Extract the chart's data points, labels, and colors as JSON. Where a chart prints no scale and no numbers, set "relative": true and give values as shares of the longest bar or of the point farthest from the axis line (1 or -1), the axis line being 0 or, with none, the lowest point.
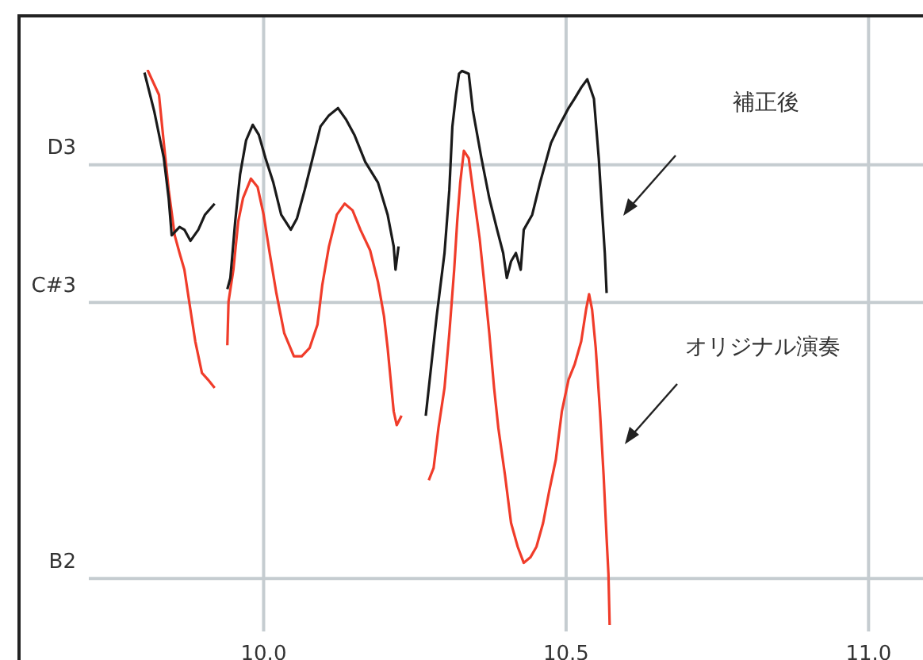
{
  "chart_data": {
    "type": "line",
    "relative": true,
    "xlim": [
      9.711,
      11.09
    ],
    "xticks": [
      {
        "value": 10,
        "label": "10.0"
      },
      {
        "value": 10.5,
        "label": "10.5"
      },
      {
        "value": 11,
        "label": "11.0"
      }
    ],
    "ref_lines": [
      {
        "axis": "y",
        "value": 0.829,
        "label": "D3"
      },
      {
        "axis": "y",
        "value": 0.581,
        "label": "C#3"
      },
      {
        "axis": "y",
        "value": 0.084,
        "label": "B2"
      }
    ],
    "grid": "x",
    "legend": false,
    "marker": "none",
    "line_style": "solid",
    "series": [
      {
        "name": "補正後",
        "color": "#1a1a1a",
        "x": [
          9.803,
          9.819,
          9.835,
          9.843,
          9.848,
          9.861,
          9.869,
          9.879,
          9.892,
          9.903,
          9.919,
          9.93,
          9.94,
          9.945,
          9.953,
          9.961,
          9.971,
          9.982,
          9.992,
          10.003,
          10.016,
          10.029,
          10.045,
          10.055,
          10.068,
          10.081,
          10.094,
          10.108,
          10.123,
          10.136,
          10.15,
          10.168,
          10.189,
          10.205,
          10.215,
          10.218,
          10.223,
          10.24,
          10.268,
          10.286,
          10.299,
          10.307,
          10.312,
          10.318,
          10.323,
          10.328,
          10.339,
          10.346,
          10.36,
          10.373,
          10.386,
          10.396,
          10.402,
          10.409,
          10.417,
          10.425,
          10.43,
          10.444,
          10.457,
          10.475,
          10.488,
          10.504,
          10.514,
          10.525,
          10.535,
          10.546,
          10.554,
          10.559,
          10.564,
          10.567
        ],
        "values": [
          0.995,
          0.926,
          0.841,
          0.769,
          0.702,
          0.717,
          0.712,
          0.692,
          0.712,
          0.739,
          0.759,
          null,
          0.605,
          0.625,
          0.727,
          0.811,
          0.873,
          0.901,
          0.883,
          0.841,
          0.797,
          0.739,
          0.712,
          0.732,
          0.784,
          0.841,
          0.898,
          0.918,
          0.931,
          0.911,
          0.883,
          0.834,
          0.797,
          0.739,
          0.682,
          0.64,
          0.682,
          null,
          0.377,
          0.556,
          0.67,
          0.784,
          0.898,
          0.955,
          0.993,
          0.998,
          0.993,
          0.926,
          0.841,
          0.769,
          0.712,
          0.67,
          0.625,
          0.655,
          0.67,
          0.64,
          0.712,
          0.739,
          0.797,
          0.868,
          0.898,
          0.931,
          0.948,
          0.968,
          0.983,
          0.948,
          0.841,
          0.754,
          0.67,
          0.598
        ]
      },
      {
        "name": "オリジナル演奏",
        "color": "#f03c2a",
        "x": [
          9.808,
          9.827,
          9.835,
          9.843,
          9.853,
          9.861,
          9.869,
          9.879,
          9.887,
          9.898,
          9.908,
          9.919,
          9.93,
          9.94,
          9.942,
          9.95,
          9.958,
          9.966,
          9.979,
          9.99,
          10,
          10.01,
          10.021,
          10.034,
          10.05,
          10.063,
          10.076,
          10.089,
          10.097,
          10.108,
          10.121,
          10.134,
          10.147,
          10.16,
          10.176,
          10.189,
          10.199,
          10.205,
          10.215,
          10.22,
          10.228,
          10.24,
          10.273,
          10.281,
          10.289,
          10.299,
          10.307,
          10.315,
          10.32,
          10.325,
          10.331,
          10.339,
          10.346,
          10.357,
          10.365,
          10.373,
          10.381,
          10.388,
          10.399,
          10.409,
          10.42,
          10.43,
          10.441,
          10.451,
          10.462,
          10.472,
          10.483,
          10.493,
          10.504,
          10.514,
          10.525,
          10.533,
          10.538,
          10.543,
          10.549,
          10.556,
          10.562,
          10.567,
          10.57,
          10.572
        ],
        "values": [
          1,
          0.955,
          0.868,
          0.784,
          0.702,
          0.67,
          0.64,
          0.568,
          0.511,
          0.454,
          0.442,
          0.427,
          null,
          0.504,
          0.583,
          0.64,
          0.727,
          0.769,
          0.804,
          0.789,
          0.739,
          0.67,
          0.598,
          0.526,
          0.484,
          0.484,
          0.499,
          0.541,
          0.613,
          0.682,
          0.739,
          0.759,
          0.747,
          0.712,
          0.675,
          0.618,
          0.556,
          0.499,
          0.385,
          0.36,
          0.377,
          null,
          0.261,
          0.283,
          0.355,
          0.427,
          0.526,
          0.64,
          0.727,
          0.797,
          0.854,
          0.841,
          0.784,
          0.697,
          0.613,
          0.526,
          0.427,
          0.355,
          0.27,
          0.184,
          0.141,
          0.112,
          0.122,
          0.141,
          0.184,
          0.241,
          0.298,
          0.385,
          0.442,
          0.469,
          0.511,
          0.568,
          0.596,
          0.568,
          0.499,
          0.385,
          0.27,
          0.156,
          0.092,
          0
        ]
      }
    ]
  }
}
